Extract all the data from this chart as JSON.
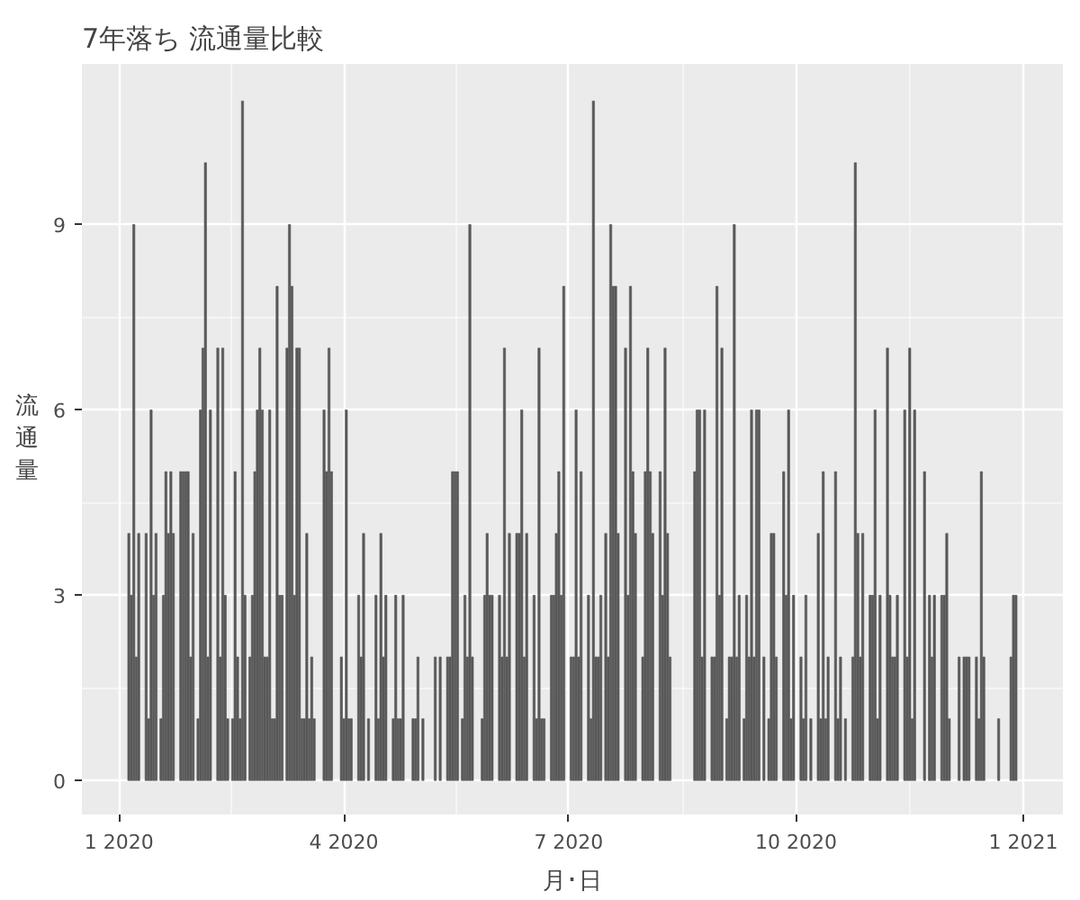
{
  "chart_data": {
    "type": "bar",
    "title": "7年落ち 流通量比較",
    "xlabel": "月･日",
    "ylabel": "流通量",
    "color": "#595959",
    "grid": true,
    "xlim": [
      "2019-12-17",
      "2021-01-17"
    ],
    "ylim": [
      -0.55,
      11.6
    ],
    "yticks": [
      0,
      3,
      6,
      9
    ],
    "xticks": [
      {
        "value": "2020-01-01",
        "label": "1 2020"
      },
      {
        "value": "2020-04-01",
        "label": "4 2020"
      },
      {
        "value": "2020-07-01",
        "label": "7 2020"
      },
      {
        "value": "2020-10-01",
        "label": "10 2020"
      },
      {
        "value": "2021-01-01",
        "label": "1 2021"
      }
    ],
    "x": [
      "2020-01-05",
      "2020-01-06",
      "2020-01-07",
      "2020-01-08",
      "2020-01-09",
      "2020-01-12",
      "2020-01-13",
      "2020-01-14",
      "2020-01-15",
      "2020-01-16",
      "2020-01-18",
      "2020-01-19",
      "2020-01-20",
      "2020-01-21",
      "2020-01-22",
      "2020-01-23",
      "2020-01-26",
      "2020-01-27",
      "2020-01-28",
      "2020-01-29",
      "2020-01-30",
      "2020-01-31",
      "2020-02-02",
      "2020-02-03",
      "2020-02-04",
      "2020-02-05",
      "2020-02-06",
      "2020-02-07",
      "2020-02-10",
      "2020-02-11",
      "2020-02-12",
      "2020-02-13",
      "2020-02-14",
      "2020-02-16",
      "2020-02-17",
      "2020-02-18",
      "2020-02-19",
      "2020-02-20",
      "2020-02-21",
      "2020-02-23",
      "2020-02-24",
      "2020-02-25",
      "2020-02-26",
      "2020-02-27",
      "2020-02-28",
      "2020-02-29",
      "2020-03-01",
      "2020-03-02",
      "2020-03-03",
      "2020-03-04",
      "2020-03-05",
      "2020-03-06",
      "2020-03-07",
      "2020-03-09",
      "2020-03-10",
      "2020-03-11",
      "2020-03-12",
      "2020-03-13",
      "2020-03-14",
      "2020-03-15",
      "2020-03-16",
      "2020-03-17",
      "2020-03-18",
      "2020-03-19",
      "2020-03-20",
      "2020-03-24",
      "2020-03-25",
      "2020-03-26",
      "2020-03-27",
      "2020-03-31",
      "2020-04-01",
      "2020-04-02",
      "2020-04-03",
      "2020-04-04",
      "2020-04-07",
      "2020-04-08",
      "2020-04-09",
      "2020-04-11",
      "2020-04-14",
      "2020-04-15",
      "2020-04-16",
      "2020-04-17",
      "2020-04-18",
      "2020-04-21",
      "2020-04-22",
      "2020-04-23",
      "2020-04-24",
      "2020-04-25",
      "2020-04-29",
      "2020-04-30",
      "2020-05-01",
      "2020-05-03",
      "2020-05-08",
      "2020-05-10",
      "2020-05-13",
      "2020-05-14",
      "2020-05-15",
      "2020-05-16",
      "2020-05-17",
      "2020-05-19",
      "2020-05-20",
      "2020-05-21",
      "2020-05-22",
      "2020-05-23",
      "2020-05-27",
      "2020-05-28",
      "2020-05-29",
      "2020-05-30",
      "2020-05-31",
      "2020-06-03",
      "2020-06-04",
      "2020-06-05",
      "2020-06-06",
      "2020-06-07",
      "2020-06-10",
      "2020-06-11",
      "2020-06-12",
      "2020-06-13",
      "2020-06-14",
      "2020-06-17",
      "2020-06-18",
      "2020-06-19",
      "2020-06-20",
      "2020-06-21",
      "2020-06-24",
      "2020-06-25",
      "2020-06-26",
      "2020-06-27",
      "2020-06-28",
      "2020-06-29",
      "2020-07-02",
      "2020-07-03",
      "2020-07-04",
      "2020-07-05",
      "2020-07-06",
      "2020-07-09",
      "2020-07-10",
      "2020-07-11",
      "2020-07-12",
      "2020-07-13",
      "2020-07-14",
      "2020-07-16",
      "2020-07-17",
      "2020-07-18",
      "2020-07-19",
      "2020-07-20",
      "2020-07-21",
      "2020-07-24",
      "2020-07-25",
      "2020-07-26",
      "2020-07-27",
      "2020-07-28",
      "2020-07-31",
      "2020-08-01",
      "2020-08-02",
      "2020-08-03",
      "2020-08-04",
      "2020-08-07",
      "2020-08-08",
      "2020-08-09",
      "2020-08-10",
      "2020-08-11",
      "2020-08-21",
      "2020-08-22",
      "2020-08-23",
      "2020-08-24",
      "2020-08-25",
      "2020-08-28",
      "2020-08-29",
      "2020-08-30",
      "2020-08-31",
      "2020-09-01",
      "2020-09-03",
      "2020-09-04",
      "2020-09-05",
      "2020-09-06",
      "2020-09-07",
      "2020-09-08",
      "2020-09-10",
      "2020-09-11",
      "2020-09-12",
      "2020-09-13",
      "2020-09-14",
      "2020-09-15",
      "2020-09-16",
      "2020-09-18",
      "2020-09-20",
      "2020-09-21",
      "2020-09-22",
      "2020-09-23",
      "2020-09-26",
      "2020-09-27",
      "2020-09-28",
      "2020-09-29",
      "2020-09-30",
      "2020-10-03",
      "2020-10-04",
      "2020-10-05",
      "2020-10-07",
      "2020-10-10",
      "2020-10-11",
      "2020-10-12",
      "2020-10-13",
      "2020-10-14",
      "2020-10-17",
      "2020-10-18",
      "2020-10-19",
      "2020-10-21",
      "2020-10-24",
      "2020-10-25",
      "2020-10-26",
      "2020-10-27",
      "2020-10-28",
      "2020-10-31",
      "2020-11-01",
      "2020-11-02",
      "2020-11-03",
      "2020-11-04",
      "2020-11-07",
      "2020-11-08",
      "2020-11-09",
      "2020-11-10",
      "2020-11-11",
      "2020-11-14",
      "2020-11-15",
      "2020-11-16",
      "2020-11-17",
      "2020-11-18",
      "2020-11-22",
      "2020-11-24",
      "2020-11-25",
      "2020-11-26",
      "2020-11-29",
      "2020-11-30",
      "2020-12-01",
      "2020-12-02",
      "2020-12-06",
      "2020-12-08",
      "2020-12-09",
      "2020-12-10",
      "2020-12-13",
      "2020-12-14",
      "2020-12-15",
      "2020-12-16",
      "2020-12-22",
      "2020-12-27",
      "2020-12-28",
      "2020-12-29"
    ],
    "values": [
      4,
      3,
      9,
      2,
      4,
      4,
      1,
      6,
      3,
      4,
      1,
      3,
      5,
      4,
      5,
      4,
      5,
      5,
      5,
      5,
      2,
      4,
      1,
      6,
      7,
      10,
      2,
      6,
      7,
      2,
      7,
      3,
      1,
      1,
      5,
      2,
      1,
      11,
      3,
      2,
      3,
      5,
      6,
      7,
      6,
      2,
      2,
      6,
      1,
      1,
      8,
      3,
      3,
      7,
      9,
      8,
      3,
      7,
      7,
      1,
      1,
      4,
      1,
      2,
      1,
      6,
      5,
      7,
      5,
      2,
      1,
      6,
      1,
      1,
      3,
      2,
      4,
      1,
      3,
      1,
      4,
      2,
      3,
      1,
      3,
      1,
      1,
      3,
      1,
      1,
      2,
      1,
      2,
      2,
      2,
      2,
      5,
      5,
      5,
      1,
      3,
      2,
      9,
      2,
      1,
      3,
      4,
      3,
      3,
      3,
      2,
      7,
      2,
      4,
      4,
      4,
      6,
      2,
      4,
      3,
      1,
      7,
      1,
      1,
      3,
      3,
      4,
      5,
      3,
      8,
      2,
      2,
      6,
      2,
      5,
      3,
      1,
      11,
      2,
      2,
      3,
      4,
      2,
      9,
      8,
      8,
      4,
      7,
      3,
      8,
      5,
      4,
      2,
      5,
      7,
      5,
      4,
      5,
      3,
      7,
      4,
      2,
      5,
      6,
      6,
      2,
      6,
      2,
      2,
      8,
      3,
      7,
      1,
      2,
      2,
      9,
      2,
      3,
      1,
      3,
      2,
      6,
      2,
      6,
      6,
      2,
      1,
      4,
      4,
      2,
      5,
      3,
      6,
      1,
      3,
      2,
      1,
      3,
      1,
      4,
      1,
      5,
      1,
      2,
      5,
      1,
      2,
      1,
      2,
      10,
      4,
      2,
      4,
      3,
      3,
      6,
      1,
      3,
      7,
      3,
      2,
      2,
      3,
      6,
      2,
      7,
      1,
      6,
      5,
      3,
      2,
      3,
      3,
      3,
      4,
      1,
      2,
      2,
      2,
      2,
      2,
      1,
      5,
      2,
      1,
      2,
      3,
      3
    ]
  }
}
